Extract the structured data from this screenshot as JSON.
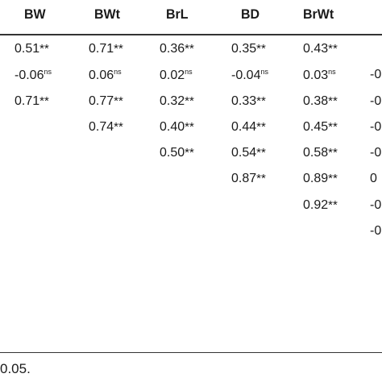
{
  "headers": [
    "BW",
    "BWt",
    "BrL",
    "BD",
    "BrWt"
  ],
  "rows": [
    [
      {
        "v": "0.51",
        "s": "**"
      },
      {
        "v": "0.71",
        "s": "**"
      },
      {
        "v": "0.36",
        "s": "**"
      },
      {
        "v": "0.35",
        "s": "**"
      },
      {
        "v": "0.43",
        "s": "**"
      },
      {
        "v": "",
        "s": ""
      }
    ],
    [
      {
        "v": "-0.06",
        "s": "ns"
      },
      {
        "v": "0.06",
        "s": "ns"
      },
      {
        "v": "0.02",
        "s": "ns"
      },
      {
        "v": "-0.04",
        "s": "ns"
      },
      {
        "v": "0.03",
        "s": "ns"
      },
      {
        "v": "-0",
        "s": ""
      }
    ],
    [
      {
        "v": "0.71",
        "s": "**"
      },
      {
        "v": "0.77",
        "s": "**"
      },
      {
        "v": "0.32",
        "s": "**"
      },
      {
        "v": "0.33",
        "s": "**"
      },
      {
        "v": "0.38",
        "s": "**"
      },
      {
        "v": "-0",
        "s": ""
      }
    ],
    [
      {
        "v": "",
        "s": ""
      },
      {
        "v": "0.74",
        "s": "**"
      },
      {
        "v": "0.40",
        "s": "**"
      },
      {
        "v": "0.44",
        "s": "**"
      },
      {
        "v": "0.45",
        "s": "**"
      },
      {
        "v": "-0",
        "s": ""
      }
    ],
    [
      {
        "v": "",
        "s": ""
      },
      {
        "v": "",
        "s": ""
      },
      {
        "v": "0.50",
        "s": "**"
      },
      {
        "v": "0.54",
        "s": "**"
      },
      {
        "v": "0.58",
        "s": "**"
      },
      {
        "v": "-0",
        "s": ""
      }
    ],
    [
      {
        "v": "",
        "s": ""
      },
      {
        "v": "",
        "s": ""
      },
      {
        "v": "",
        "s": ""
      },
      {
        "v": "0.87",
        "s": "**"
      },
      {
        "v": "0.89",
        "s": "**"
      },
      {
        "v": "0",
        "s": ""
      }
    ],
    [
      {
        "v": "",
        "s": ""
      },
      {
        "v": "",
        "s": ""
      },
      {
        "v": "",
        "s": ""
      },
      {
        "v": "",
        "s": ""
      },
      {
        "v": "0.92",
        "s": "**"
      },
      {
        "v": "-0",
        "s": ""
      }
    ],
    [
      {
        "v": "",
        "s": ""
      },
      {
        "v": "",
        "s": ""
      },
      {
        "v": "",
        "s": ""
      },
      {
        "v": "",
        "s": ""
      },
      {
        "v": "",
        "s": ""
      },
      {
        "v": "-0",
        "s": ""
      }
    ]
  ],
  "footnote": "0.05."
}
